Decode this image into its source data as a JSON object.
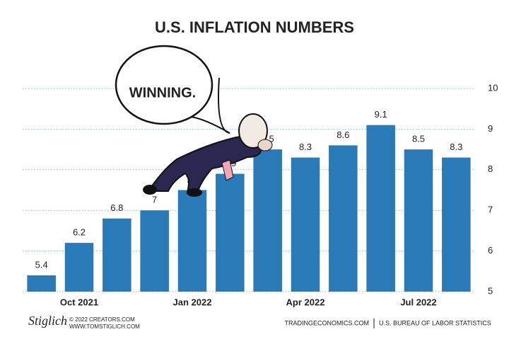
{
  "chart_data": {
    "type": "bar",
    "title": "U.S. INFLATION NUMBERS",
    "categories": [
      null,
      "Oct 2021",
      null,
      null,
      "Jan 2022",
      null,
      null,
      "Apr 2022",
      null,
      null,
      "Jul 2022",
      null
    ],
    "values": [
      5.4,
      6.2,
      6.8,
      7,
      7.5,
      7.9,
      8.5,
      8.3,
      8.6,
      9.1,
      8.5,
      8.3
    ],
    "color": "#2a7ab8",
    "ylim": [
      5,
      10
    ],
    "yticks": [
      5,
      6,
      7,
      8,
      9,
      10
    ],
    "grid": true,
    "annotation": "WINNING.",
    "footer": {
      "signature": "Stiglich",
      "copyright": "© 2022 CREATORS.COM",
      "website": "WWW.TOMSTIGLICH.COM",
      "source": "TRADINGECONOMICS.COM",
      "source2": "U.S. BUREAU OF LABOR STATISTICS"
    }
  }
}
